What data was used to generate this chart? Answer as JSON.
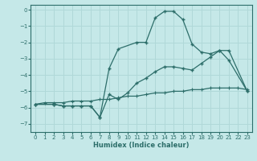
{
  "xlabel": "Humidex (Indice chaleur)",
  "xlim": [
    -0.5,
    23.5
  ],
  "ylim": [
    -7.5,
    0.3
  ],
  "xticks": [
    0,
    1,
    2,
    3,
    4,
    5,
    6,
    7,
    8,
    9,
    10,
    11,
    12,
    13,
    14,
    15,
    16,
    17,
    18,
    19,
    20,
    21,
    22,
    23
  ],
  "yticks": [
    0,
    -1,
    -2,
    -3,
    -4,
    -5,
    -6,
    -7
  ],
  "bg_color": "#c5e8e8",
  "line_color": "#2d6e6a",
  "grid_color": "#b0d8d8",
  "line1_x": [
    0,
    2,
    3,
    4,
    5,
    6,
    7,
    8,
    9,
    11,
    12,
    13,
    14,
    15,
    16,
    17,
    18,
    19,
    20,
    21,
    23
  ],
  "line1_y": [
    -5.8,
    -5.8,
    -5.9,
    -5.9,
    -5.9,
    -5.9,
    -6.6,
    -3.6,
    -2.4,
    -2.0,
    -2.0,
    -0.5,
    -0.1,
    -0.1,
    -0.6,
    -2.1,
    -2.6,
    -2.7,
    -2.5,
    -3.1,
    -5.0
  ],
  "line2_x": [
    0,
    2,
    3,
    4,
    5,
    6,
    7,
    8,
    9,
    10,
    11,
    12,
    13,
    14,
    15,
    16,
    17,
    18,
    19,
    20,
    21,
    23
  ],
  "line2_y": [
    -5.8,
    -5.8,
    -5.9,
    -5.9,
    -5.9,
    -5.9,
    -6.6,
    -5.2,
    -5.5,
    -5.1,
    -4.5,
    -4.2,
    -3.8,
    -3.5,
    -3.5,
    -3.6,
    -3.7,
    -3.3,
    -2.9,
    -2.5,
    -2.5,
    -5.0
  ],
  "line3_x": [
    0,
    1,
    2,
    3,
    4,
    5,
    6,
    7,
    8,
    9,
    10,
    11,
    12,
    13,
    14,
    15,
    16,
    17,
    18,
    19,
    20,
    21,
    22,
    23
  ],
  "line3_y": [
    -5.8,
    -5.7,
    -5.7,
    -5.7,
    -5.6,
    -5.6,
    -5.6,
    -5.5,
    -5.5,
    -5.4,
    -5.3,
    -5.3,
    -5.2,
    -5.1,
    -5.1,
    -5.0,
    -5.0,
    -4.9,
    -4.9,
    -4.8,
    -4.8,
    -4.8,
    -4.8,
    -4.9
  ]
}
